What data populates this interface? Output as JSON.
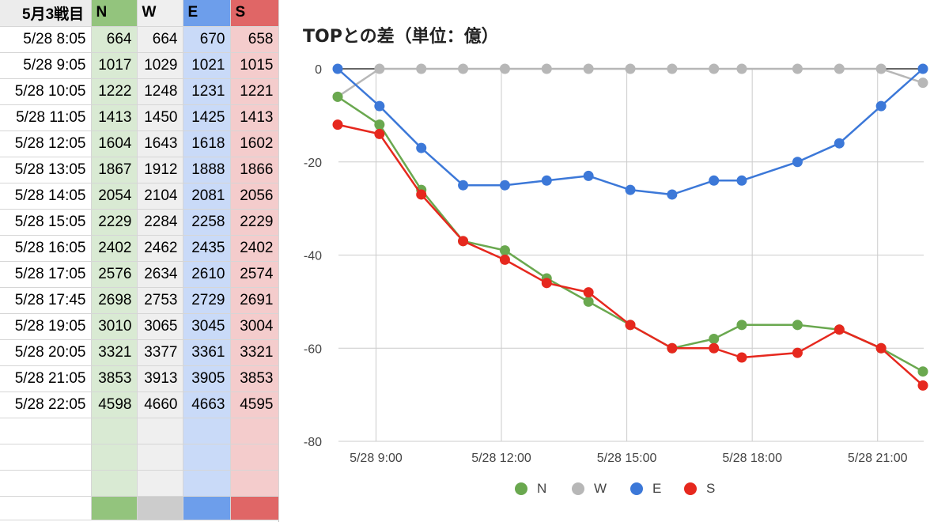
{
  "sheet": {
    "headers": [
      "5月3戦目",
      "N",
      "W",
      "E",
      "S"
    ],
    "column_colors": {
      "N": {
        "header": "#93c47d",
        "cell": "#d9ead3",
        "band": "#93c47d"
      },
      "W": {
        "header": "#efefef",
        "cell": "#efefef",
        "band": "#cccccc"
      },
      "E": {
        "header": "#6d9eeb",
        "cell": "#c9daf8",
        "band": "#6d9eeb"
      },
      "S": {
        "header": "#e06666",
        "cell": "#f4cccc",
        "band": "#e06666"
      }
    },
    "rows": [
      [
        "5/28 8:05",
        "664",
        "664",
        "670",
        "658"
      ],
      [
        "5/28 9:05",
        "1017",
        "1029",
        "1021",
        "1015"
      ],
      [
        "5/28 10:05",
        "1222",
        "1248",
        "1231",
        "1221"
      ],
      [
        "5/28 11:05",
        "1413",
        "1450",
        "1425",
        "1413"
      ],
      [
        "5/28 12:05",
        "1604",
        "1643",
        "1618",
        "1602"
      ],
      [
        "5/28 13:05",
        "1867",
        "1912",
        "1888",
        "1866"
      ],
      [
        "5/28 14:05",
        "2054",
        "2104",
        "2081",
        "2056"
      ],
      [
        "5/28 15:05",
        "2229",
        "2284",
        "2258",
        "2229"
      ],
      [
        "5/28 16:05",
        "2402",
        "2462",
        "2435",
        "2402"
      ],
      [
        "5/28 17:05",
        "2576",
        "2634",
        "2610",
        "2574"
      ],
      [
        "5/28 17:45",
        "2698",
        "2753",
        "2729",
        "2691"
      ],
      [
        "5/28 19:05",
        "3010",
        "3065",
        "3045",
        "3004"
      ],
      [
        "5/28 20:05",
        "3321",
        "3377",
        "3361",
        "3321"
      ],
      [
        "5/28 21:05",
        "3853",
        "3913",
        "3905",
        "3853"
      ],
      [
        "5/28 22:05",
        "4598",
        "4660",
        "4663",
        "4595"
      ]
    ]
  },
  "chart_data": {
    "type": "line",
    "title": "TOPとの差（単位：億）",
    "x": [
      "8:05",
      "9:05",
      "10:05",
      "11:05",
      "12:05",
      "13:05",
      "14:05",
      "15:05",
      "16:05",
      "17:05",
      "17:45",
      "19:05",
      "20:05",
      "21:05",
      "22:05"
    ],
    "x_hours": [
      8.0833,
      9.0833,
      10.0833,
      11.0833,
      12.0833,
      13.0833,
      14.0833,
      15.0833,
      16.0833,
      17.0833,
      17.75,
      19.0833,
      20.0833,
      21.0833,
      22.0833
    ],
    "x_ticks": [
      9,
      12,
      15,
      18,
      21
    ],
    "x_tick_labels": [
      "5/28 9:00",
      "5/28 12:00",
      "5/28 15:00",
      "5/28 18:00",
      "5/28 21:00"
    ],
    "xlim": [
      8.0833,
      22.0833
    ],
    "ylim": [
      -80,
      0
    ],
    "y_ticks": [
      0,
      -20,
      -40,
      -60,
      -80
    ],
    "grid": true,
    "legend_position": "bottom",
    "series": [
      {
        "name": "N",
        "color": "#6aa84f",
        "values": [
          -6,
          -12,
          -26,
          -37,
          -39,
          -45,
          -50,
          -55,
          -60,
          -58,
          -55,
          -55,
          -56,
          -60,
          -65
        ]
      },
      {
        "name": "W",
        "color": "#b7b7b7",
        "values": [
          -6,
          0,
          0,
          0,
          0,
          0,
          0,
          0,
          0,
          0,
          0,
          0,
          0,
          0,
          -3
        ]
      },
      {
        "name": "E",
        "color": "#3c78d8",
        "values": [
          0,
          -8,
          -17,
          -25,
          -25,
          -24,
          -23,
          -26,
          -27,
          -24,
          -24,
          -20,
          -16,
          -8,
          0
        ]
      },
      {
        "name": "S",
        "color": "#e6281e",
        "values": [
          -12,
          -14,
          -27,
          -37,
          -41,
          -46,
          -48,
          -55,
          -60,
          -60,
          -62,
          -61,
          -56,
          -60,
          -68
        ]
      }
    ]
  }
}
